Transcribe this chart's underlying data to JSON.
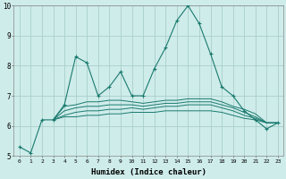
{
  "xlabel": "Humidex (Indice chaleur)",
  "xlim": [
    -0.5,
    23.5
  ],
  "ylim": [
    5,
    10
  ],
  "xticks": [
    0,
    1,
    2,
    3,
    4,
    5,
    6,
    7,
    8,
    9,
    10,
    11,
    12,
    13,
    14,
    15,
    16,
    17,
    18,
    19,
    20,
    21,
    22,
    23
  ],
  "yticks": [
    5,
    6,
    7,
    8,
    9,
    10
  ],
  "bg_color": "#ceecea",
  "grid_color": "#aacfcc",
  "line_color": "#1a7a6e",
  "line1_x": [
    0,
    1,
    2,
    3,
    4,
    5,
    6,
    7,
    8,
    9,
    10,
    11,
    12,
    13,
    14,
    15,
    16,
    17,
    18,
    19,
    20,
    21,
    22,
    23
  ],
  "line1_y": [
    5.3,
    5.1,
    6.2,
    6.2,
    6.7,
    8.3,
    8.1,
    7.0,
    7.3,
    7.8,
    7.0,
    7.0,
    7.9,
    8.6,
    9.5,
    10.0,
    9.4,
    8.4,
    7.3,
    7.0,
    6.5,
    6.2,
    5.9,
    6.1
  ],
  "line2_x": [
    3,
    4,
    5,
    6,
    7,
    8,
    9,
    10,
    11,
    12,
    13,
    14,
    15,
    16,
    17,
    18,
    19,
    20,
    21,
    22,
    23
  ],
  "line2_y": [
    6.2,
    6.3,
    6.3,
    6.35,
    6.35,
    6.4,
    6.4,
    6.45,
    6.45,
    6.45,
    6.5,
    6.5,
    6.5,
    6.5,
    6.5,
    6.45,
    6.35,
    6.25,
    6.2,
    6.1,
    6.1
  ],
  "line3_x": [
    3,
    4,
    5,
    6,
    7,
    8,
    9,
    10,
    11,
    12,
    13,
    14,
    15,
    16,
    17,
    18,
    19,
    20,
    21,
    22,
    23
  ],
  "line3_y": [
    6.2,
    6.35,
    6.45,
    6.5,
    6.5,
    6.55,
    6.55,
    6.6,
    6.55,
    6.6,
    6.65,
    6.65,
    6.7,
    6.7,
    6.7,
    6.6,
    6.5,
    6.35,
    6.25,
    6.1,
    6.1
  ],
  "line4_x": [
    3,
    4,
    5,
    6,
    7,
    8,
    9,
    10,
    11,
    12,
    13,
    14,
    15,
    16,
    17,
    18,
    19,
    20,
    21,
    22,
    23
  ],
  "line4_y": [
    6.2,
    6.5,
    6.6,
    6.65,
    6.65,
    6.7,
    6.7,
    6.7,
    6.65,
    6.7,
    6.75,
    6.75,
    6.8,
    6.8,
    6.8,
    6.7,
    6.6,
    6.45,
    6.3,
    6.1,
    6.1
  ],
  "line5_x": [
    3,
    4,
    5,
    6,
    7,
    8,
    9,
    10,
    11,
    12,
    13,
    14,
    15,
    16,
    17,
    18,
    19,
    20,
    21,
    22,
    23
  ],
  "line5_y": [
    6.2,
    6.65,
    6.7,
    6.8,
    6.8,
    6.85,
    6.85,
    6.8,
    6.75,
    6.8,
    6.85,
    6.85,
    6.9,
    6.9,
    6.9,
    6.8,
    6.65,
    6.55,
    6.4,
    6.1,
    6.1
  ]
}
